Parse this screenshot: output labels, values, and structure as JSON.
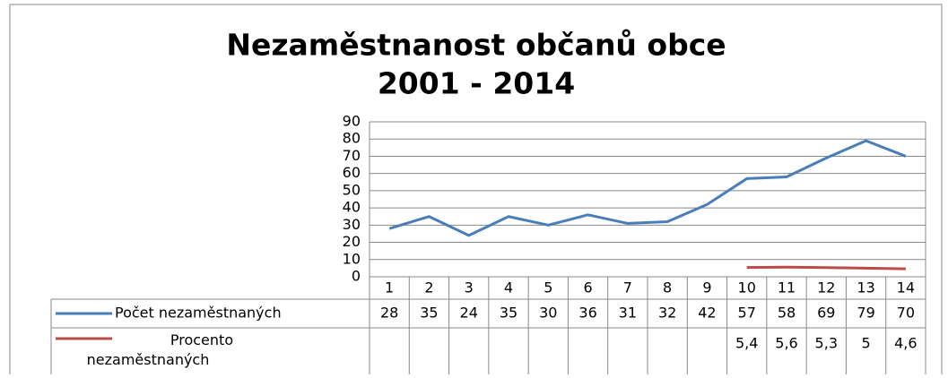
{
  "chart_data": {
    "type": "line",
    "title": [
      "Nezaměstnanost občanů obce",
      "2001 - 2014"
    ],
    "categories": [
      "1",
      "2",
      "3",
      "4",
      "5",
      "6",
      "7",
      "8",
      "9",
      "10",
      "11",
      "12",
      "13",
      "14"
    ],
    "series": [
      {
        "name": "Počet nezaměstnaných",
        "color": "#4a7ebb",
        "values": [
          28,
          35,
          24,
          35,
          30,
          36,
          31,
          32,
          42,
          57,
          58,
          69,
          79,
          70
        ]
      },
      {
        "name": "Procento nezaměstnaných",
        "color": "#be4b48",
        "values": [
          null,
          null,
          null,
          null,
          null,
          null,
          null,
          null,
          null,
          5.4,
          5.6,
          5.3,
          5,
          4.6
        ],
        "value_labels": [
          null,
          null,
          null,
          null,
          null,
          null,
          null,
          null,
          null,
          "5,4",
          "5,6",
          "5,3",
          "5",
          "4,6"
        ]
      }
    ],
    "ylim": [
      0,
      90
    ],
    "yticks": [
      0,
      10,
      20,
      30,
      40,
      50,
      60,
      70,
      80,
      90
    ],
    "grid": true
  }
}
